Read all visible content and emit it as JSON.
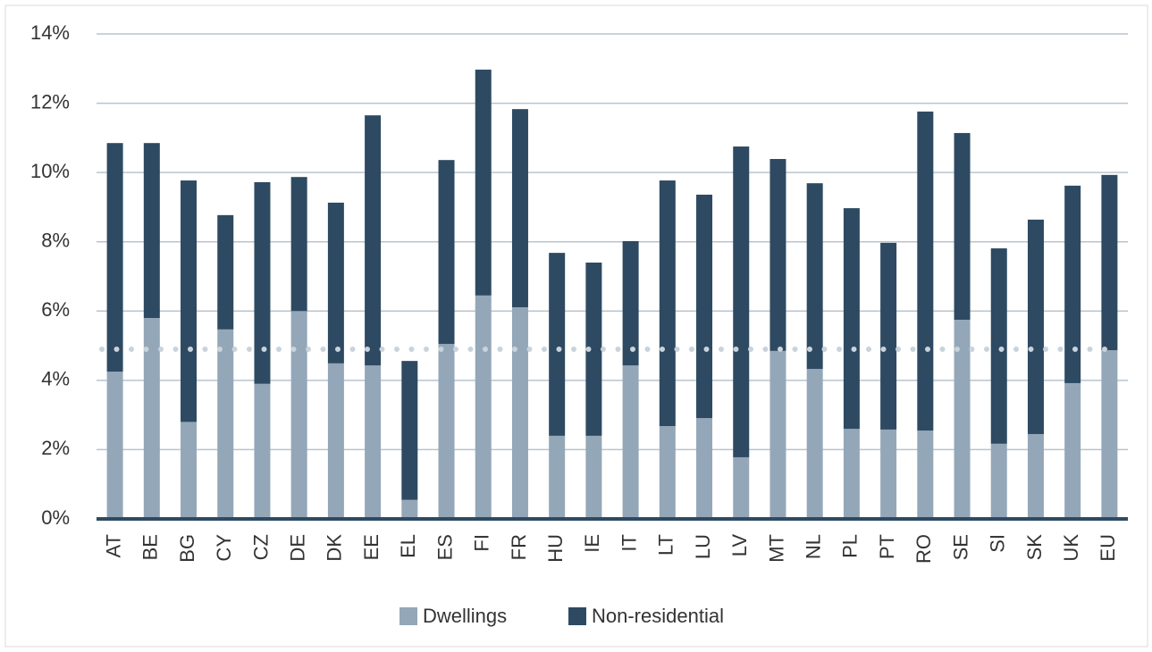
{
  "chart_data": {
    "type": "stacked_bar",
    "categories": [
      "AT",
      "BE",
      "BG",
      "CY",
      "CZ",
      "DE",
      "DK",
      "EE",
      "EL",
      "ES",
      "FI",
      "FR",
      "HU",
      "IE",
      "IT",
      "LT",
      "LU",
      "LV",
      "MT",
      "NL",
      "PL",
      "PT",
      "RO",
      "SE",
      "SI",
      "SK",
      "UK",
      "EU"
    ],
    "series": [
      {
        "name": "Dwellings",
        "color": "#94a7b8",
        "values": [
          4.25,
          5.8,
          2.8,
          5.47,
          3.9,
          6.0,
          4.49,
          4.43,
          0.55,
          5.05,
          6.45,
          6.11,
          2.4,
          2.4,
          4.43,
          2.68,
          2.91,
          1.78,
          4.85,
          4.33,
          2.6,
          2.58,
          2.55,
          5.75,
          2.17,
          2.45,
          3.92,
          4.87
        ]
      },
      {
        "name": "Non-residential",
        "color": "#2e4a62",
        "values": [
          6.6,
          5.05,
          6.97,
          3.3,
          5.82,
          3.87,
          4.64,
          7.22,
          4.01,
          5.31,
          6.52,
          5.72,
          5.28,
          5.0,
          3.59,
          7.09,
          6.45,
          8.97,
          5.54,
          5.36,
          6.37,
          5.39,
          9.21,
          5.39,
          5.64,
          6.19,
          5.7,
          5.06
        ]
      }
    ],
    "reference_line": 4.9,
    "ylim": [
      0,
      14
    ],
    "yticks": [
      {
        "value": 0,
        "label": "0%"
      },
      {
        "value": 2,
        "label": "2%"
      },
      {
        "value": 4,
        "label": "4%"
      },
      {
        "value": 6,
        "label": "6%"
      },
      {
        "value": 8,
        "label": "8%"
      },
      {
        "value": 10,
        "label": "10%"
      },
      {
        "value": 12,
        "label": "12%"
      },
      {
        "value": 14,
        "label": "14%"
      }
    ],
    "grid": true,
    "legend": "bottom"
  }
}
